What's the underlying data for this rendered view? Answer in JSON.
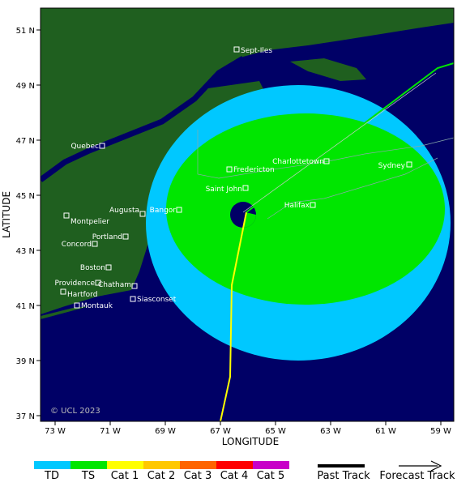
{
  "map": {
    "xticks": [
      "73 W",
      "71 W",
      "69 W",
      "67 W",
      "65 W",
      "63 W",
      "61 W",
      "59 W"
    ],
    "yticks": [
      "51 N",
      "49 N",
      "47 N",
      "45 N",
      "43 N",
      "41 N",
      "39 N",
      "37 N"
    ],
    "x_label": "LONGITUDE",
    "y_label": "LATITUDE",
    "cities": [
      "Sept-Iles",
      "Quebec",
      "Charlottetown",
      "Fredericton",
      "Sydney",
      "Saint John",
      "Augusta",
      "Bangor",
      "Halifax",
      "Montpelier",
      "Portland",
      "Concord",
      "Boston",
      "Providence",
      "Chatham",
      "Hartford",
      "Siasconset",
      "Montauk"
    ],
    "copyright": "© UCL 2023"
  },
  "legend": {
    "categories": [
      "TD",
      "TS",
      "Cat 1",
      "Cat 2",
      "Cat 3",
      "Cat 4",
      "Cat 5"
    ],
    "past_track": "Past Track",
    "forecast_track": "Forecast Track"
  }
}
